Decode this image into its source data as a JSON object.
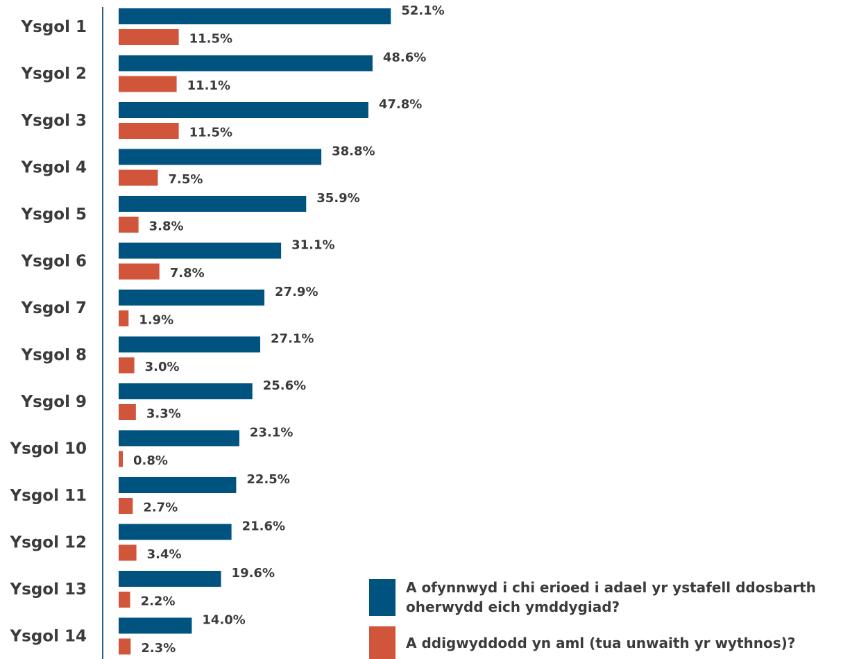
{
  "chart_data": {
    "type": "bar",
    "orientation": "horizontal",
    "categories": [
      "Ysgol 1",
      "Ysgol 2",
      "Ysgol 3",
      "Ysgol 4",
      "Ysgol 5",
      "Ysgol 6",
      "Ysgol 7",
      "Ysgol 8",
      "Ysgol 9",
      "Ysgol 10",
      "Ysgol 11",
      "Ysgol 12",
      "Ysgol 13",
      "Ysgol 14"
    ],
    "series": [
      {
        "name": "A ofynnwyd i chi erioed i adael yr ystafell ddosbarth oherwydd eich ymddygiad?",
        "color": "#00527f",
        "values": [
          52.1,
          48.6,
          47.8,
          38.8,
          35.9,
          31.1,
          27.9,
          27.1,
          25.6,
          23.1,
          22.5,
          21.6,
          19.6,
          14.0
        ],
        "value_labels": [
          "52.1%",
          "48.6%",
          "47.8%",
          "38.8%",
          "35.9%",
          "31.1%",
          "27.9%",
          "27.1%",
          "25.6%",
          "23.1%",
          "22.5%",
          "21.6%",
          "19.6%",
          "14.0%"
        ]
      },
      {
        "name": "A ddigwyddodd yn aml (tua unwaith yr wythnos)?",
        "color": "#d0553a",
        "values": [
          11.5,
          11.1,
          11.5,
          7.5,
          3.8,
          7.8,
          1.9,
          3.0,
          3.3,
          0.8,
          2.7,
          3.4,
          2.2,
          2.3
        ],
        "value_labels": [
          "11.5%",
          "11.1%",
          "11.5%",
          "7.5%",
          "3.8%",
          "7.8%",
          "1.9%",
          "3.0%",
          "3.3%",
          "0.8%",
          "2.7%",
          "3.4%",
          "2.2%",
          "2.3%"
        ]
      }
    ],
    "xlim": [
      0,
      140
    ],
    "legend": "bottom-right"
  }
}
